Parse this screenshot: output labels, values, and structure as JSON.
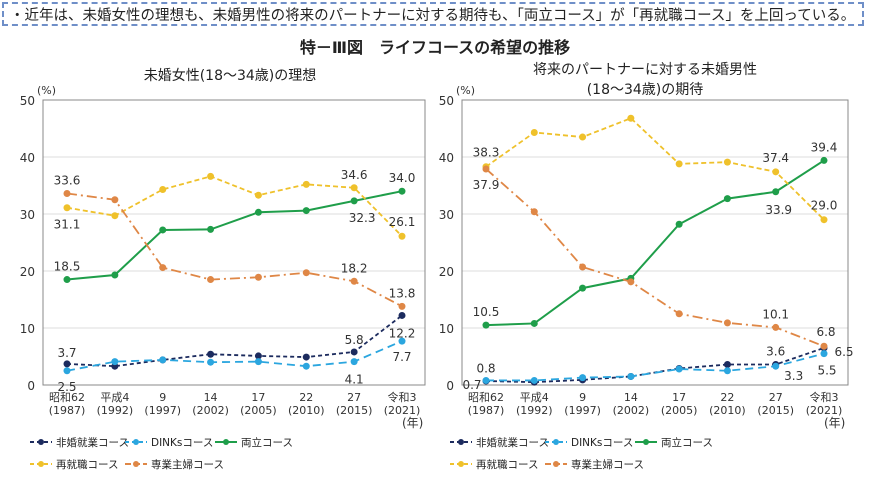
{
  "headline": "・近年は、未婚女性の理想も、未婚男性の将来のパートナーに対する期待も、「両立コース」が「再就職コース」を上回っている。",
  "figure_title": "特－Ⅲ図　ライフコースの希望の推移",
  "chart_data": [
    {
      "type": "line",
      "title": "未婚女性(18～34歳)の理想",
      "title_lines": [
        "未婚女性(18～34歳)の理想"
      ],
      "ylabel": "(%)",
      "xlabel": "(年)",
      "ylim": [
        0,
        50
      ],
      "yticks": [
        "0",
        "10",
        "20",
        "30",
        "40",
        "50"
      ],
      "grid": true,
      "legend": "bottom",
      "categories": [
        [
          "昭和62",
          "(1987)"
        ],
        [
          "平成4",
          "(1992)"
        ],
        [
          "9",
          "(1997)"
        ],
        [
          "14",
          "(2002)"
        ],
        [
          "17",
          "(2005)"
        ],
        [
          "22",
          "(2010)"
        ],
        [
          "27",
          "(2015)"
        ],
        [
          "令和3",
          "(2021)"
        ]
      ],
      "series": [
        {
          "name": "非婚就業コース",
          "color": "#1c2b5e",
          "dash": "4,3",
          "values": [
            3.7,
            3.3,
            4.4,
            5.4,
            5.1,
            4.9,
            5.8,
            12.2
          ]
        },
        {
          "name": "DINKsコース",
          "color": "#2ba6df",
          "dash": "8,5",
          "values": [
            2.5,
            4.1,
            4.4,
            4.0,
            4.1,
            3.3,
            4.1,
            7.7
          ]
        },
        {
          "name": "両立コース",
          "color": "#1f9e4a",
          "dash": "",
          "values": [
            18.5,
            19.3,
            27.2,
            27.3,
            30.3,
            30.6,
            32.3,
            34.0
          ]
        },
        {
          "name": "再就職コース",
          "color": "#efc12b",
          "dash": "5,3",
          "values": [
            31.1,
            29.7,
            34.3,
            36.6,
            33.3,
            35.2,
            34.6,
            26.1
          ]
        },
        {
          "name": "専業主婦コース",
          "color": "#df8746",
          "dash": "10,4,2,4",
          "values": [
            33.6,
            32.5,
            20.6,
            18.5,
            18.9,
            19.7,
            18.2,
            13.8
          ]
        }
      ],
      "labels": [
        {
          "series": 4,
          "index": 0,
          "text": "33.6"
        },
        {
          "series": 3,
          "index": 0,
          "text": "31.1"
        },
        {
          "series": 2,
          "index": 0,
          "text": "18.5"
        },
        {
          "series": 0,
          "index": 0,
          "text": "3.7"
        },
        {
          "series": 1,
          "index": 0,
          "text": "2.5"
        },
        {
          "series": 3,
          "index": 6,
          "text": "34.6"
        },
        {
          "series": 2,
          "index": 7,
          "text": "34.0"
        },
        {
          "series": 2,
          "index": 6,
          "text": "32.3"
        },
        {
          "series": 3,
          "index": 7,
          "text": "26.1"
        },
        {
          "series": 4,
          "index": 6,
          "text": "18.2"
        },
        {
          "series": 4,
          "index": 7,
          "text": "13.8"
        },
        {
          "series": 0,
          "index": 6,
          "text": "5.8"
        },
        {
          "series": 0,
          "index": 7,
          "text": "12.2"
        },
        {
          "series": 1,
          "index": 6,
          "text": "4.1"
        },
        {
          "series": 1,
          "index": 7,
          "text": "7.7"
        }
      ]
    },
    {
      "type": "line",
      "title": "将来のパートナーに対する未婚男性(18～34歳)の期待",
      "title_lines": [
        "将来のパートナーに対する未婚男性",
        "(18～34歳)の期待"
      ],
      "ylabel": "(%)",
      "xlabel": "(年)",
      "ylim": [
        0,
        50
      ],
      "yticks": [
        "0",
        "10",
        "20",
        "30",
        "40",
        "50"
      ],
      "grid": true,
      "legend": "bottom",
      "categories": [
        [
          "昭和62",
          "(1987)"
        ],
        [
          "平成4",
          "(1992)"
        ],
        [
          "9",
          "(1997)"
        ],
        [
          "14",
          "(2002)"
        ],
        [
          "17",
          "(2005)"
        ],
        [
          "22",
          "(2010)"
        ],
        [
          "27",
          "(2015)"
        ],
        [
          "令和3",
          "(2021)"
        ]
      ],
      "series": [
        {
          "name": "非婚就業コース",
          "color": "#1c2b5e",
          "dash": "4,3",
          "values": [
            0.7,
            0.5,
            0.9,
            1.5,
            2.9,
            3.6,
            3.6,
            6.5
          ]
        },
        {
          "name": "DINKsコース",
          "color": "#2ba6df",
          "dash": "8,5",
          "values": [
            0.8,
            0.8,
            1.3,
            1.5,
            2.8,
            2.5,
            3.3,
            5.5
          ]
        },
        {
          "name": "両立コース",
          "color": "#1f9e4a",
          "dash": "",
          "values": [
            10.5,
            10.8,
            17.0,
            18.7,
            28.2,
            32.7,
            33.9,
            39.4
          ]
        },
        {
          "name": "再就職コース",
          "color": "#efc12b",
          "dash": "5,3",
          "values": [
            38.3,
            44.3,
            43.5,
            46.8,
            38.8,
            39.1,
            37.4,
            29.0
          ]
        },
        {
          "name": "専業主婦コース",
          "color": "#df8746",
          "dash": "10,4,2,4",
          "values": [
            37.9,
            30.4,
            20.7,
            18.1,
            12.5,
            10.9,
            10.1,
            6.8
          ]
        }
      ],
      "labels": [
        {
          "series": 3,
          "index": 0,
          "text": "38.3"
        },
        {
          "series": 4,
          "index": 0,
          "text": "37.9"
        },
        {
          "series": 2,
          "index": 0,
          "text": "10.5"
        },
        {
          "series": 1,
          "index": 0,
          "text": "0.8"
        },
        {
          "series": 0,
          "index": 0,
          "text": "0.7"
        },
        {
          "series": 3,
          "index": 6,
          "text": "37.4"
        },
        {
          "series": 2,
          "index": 7,
          "text": "39.4"
        },
        {
          "series": 2,
          "index": 6,
          "text": "33.9"
        },
        {
          "series": 3,
          "index": 7,
          "text": "29.0"
        },
        {
          "series": 4,
          "index": 6,
          "text": "10.1"
        },
        {
          "series": 4,
          "index": 7,
          "text": "6.8"
        },
        {
          "series": 0,
          "index": 6,
          "text": "3.6"
        },
        {
          "series": 0,
          "index": 7,
          "text": "6.5"
        },
        {
          "series": 1,
          "index": 6,
          "text": "3.3"
        },
        {
          "series": 1,
          "index": 7,
          "text": "5.5"
        }
      ]
    }
  ]
}
